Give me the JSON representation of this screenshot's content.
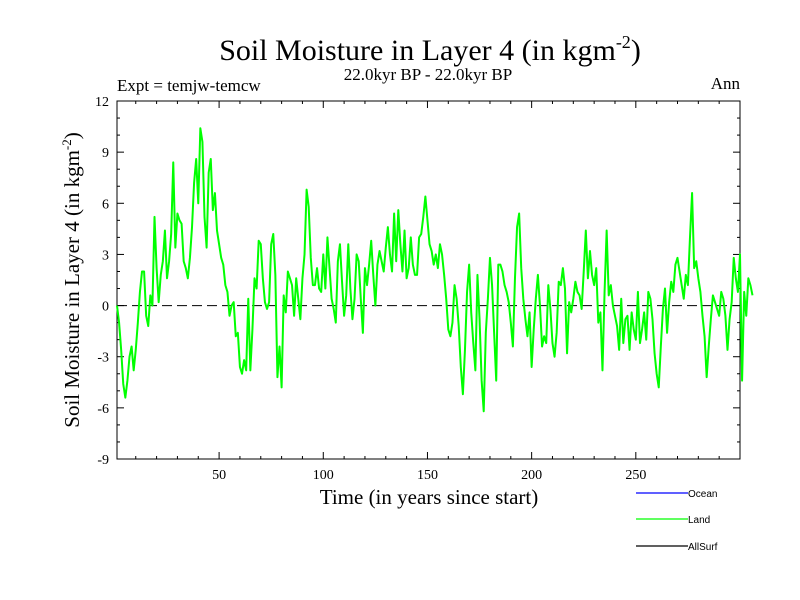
{
  "chart_data": {
    "type": "line",
    "title": "Soil Moisture in Layer 4 (in kgm",
    "title_superscript": "-2",
    "title_close": ")",
    "subtitle": "22.0kyr BP - 22.0kyr BP",
    "experiment": "Expt = temjw-temcw",
    "season": "Ann",
    "xlabel": "Time (in years since start)",
    "ylabel": "Soil Moisture in Layer 4 (in kgm",
    "ylabel_superscript": "-2",
    "ylabel_close": ")",
    "xlim": [
      1,
      300
    ],
    "ylim": [
      -9,
      12
    ],
    "xticks": [
      50,
      100,
      150,
      200,
      250
    ],
    "yticks": [
      -9,
      -6,
      -3,
      0,
      3,
      6,
      9,
      12
    ],
    "zero_line": "dashed",
    "legend": [
      "Ocean",
      "Land",
      "AllSurf"
    ],
    "series": [
      {
        "name": "Ocean",
        "color": "#0000ff",
        "values": []
      },
      {
        "name": "AllSurf",
        "color": "#000000",
        "values": []
      },
      {
        "name": "Land",
        "color": "#00ff00",
        "x_start": 1,
        "values": [
          0.0,
          -1.0,
          -2.6,
          -4.6,
          -5.4,
          -4.4,
          -3.0,
          -2.4,
          -3.8,
          -2.6,
          -1.0,
          0.8,
          2.0,
          2.0,
          -0.6,
          -1.2,
          0.6,
          0.0,
          5.2,
          2.2,
          0.2,
          1.8,
          2.6,
          4.4,
          1.6,
          2.6,
          4.2,
          8.4,
          3.4,
          5.4,
          5.0,
          4.8,
          2.6,
          2.2,
          1.6,
          2.8,
          4.6,
          7.2,
          8.6,
          6.0,
          10.4,
          9.6,
          5.2,
          3.4,
          7.8,
          8.6,
          5.6,
          6.6,
          4.4,
          3.6,
          2.8,
          2.4,
          1.2,
          0.8,
          -0.6,
          0.0,
          0.2,
          -1.8,
          -1.6,
          -3.6,
          -4.0,
          -3.2,
          -3.8,
          0.4,
          -3.8,
          -1.4,
          1.6,
          1.0,
          3.8,
          3.6,
          1.6,
          0.2,
          -0.2,
          0.2,
          3.6,
          4.2,
          1.8,
          -4.2,
          -2.4,
          -4.8,
          0.6,
          -0.4,
          2.0,
          1.6,
          1.2,
          -0.6,
          1.6,
          0.4,
          -0.8,
          1.6,
          3.0,
          6.8,
          5.8,
          2.8,
          1.2,
          1.2,
          2.2,
          1.0,
          0.8,
          3.0,
          1.0,
          4.0,
          2.2,
          0.4,
          -0.2,
          -1.0,
          2.6,
          3.6,
          1.4,
          -0.6,
          0.6,
          3.6,
          1.0,
          -0.8,
          0.4,
          3.0,
          2.6,
          0.4,
          -1.6,
          2.2,
          1.2,
          2.4,
          3.8,
          1.8,
          0.0,
          2.4,
          3.2,
          2.6,
          2.0,
          3.4,
          4.6,
          3.0,
          2.0,
          5.4,
          2.6,
          5.6,
          3.6,
          2.0,
          4.4,
          1.6,
          2.2,
          4.0,
          2.4,
          1.8,
          1.8,
          4.0,
          4.2,
          5.2,
          6.4,
          5.0,
          3.6,
          3.2,
          2.4,
          3.0,
          2.2,
          3.6,
          3.0,
          1.8,
          0.4,
          -1.4,
          -1.8,
          -1.0,
          1.2,
          0.4,
          -1.2,
          -3.6,
          -5.2,
          -2.6,
          0.8,
          2.4,
          -0.4,
          -2.2,
          -3.8,
          1.8,
          -0.8,
          -4.4,
          -6.2,
          -1.6,
          0.4,
          2.8,
          1.2,
          -1.6,
          -4.4,
          2.4,
          2.4,
          2.0,
          1.2,
          0.8,
          0.2,
          -1.0,
          -2.4,
          1.6,
          4.6,
          5.4,
          2.2,
          0.4,
          -0.8,
          -1.8,
          -0.4,
          -3.6,
          -1.4,
          0.4,
          1.8,
          0.0,
          -2.4,
          -1.8,
          -2.2,
          1.2,
          -0.2,
          -2.2,
          -3.0,
          -1.6,
          1.4,
          1.2,
          2.2,
          1.0,
          -2.8,
          0.2,
          -0.4,
          0.4,
          1.4,
          0.8,
          0.6,
          -0.2,
          2.0,
          4.4,
          1.6,
          3.2,
          1.8,
          1.2,
          2.2,
          -1.0,
          -0.4,
          -3.8,
          0.8,
          4.4,
          0.6,
          1.2,
          0.0,
          -0.6,
          -1.2,
          -2.6,
          0.4,
          -2.2,
          -0.8,
          -0.6,
          -2.6,
          -0.4,
          -1.4,
          -2.0,
          0.8,
          -2.2,
          -1.4,
          -0.4,
          -2.0,
          0.8,
          0.4,
          -0.8,
          -2.8,
          -4.0,
          -4.8,
          -2.4,
          -0.2,
          1.0,
          -1.6,
          0.2,
          1.4,
          0.8,
          2.4,
          2.8,
          2.0,
          1.2,
          0.4,
          1.8,
          1.2,
          4.0,
          6.6,
          2.2,
          2.6,
          1.6,
          0.8,
          -0.6,
          -1.8,
          -4.2,
          -2.4,
          -0.8,
          0.6,
          0.2,
          -0.2,
          -0.6,
          0.8,
          0.4,
          -0.6,
          -2.6,
          -0.8,
          0.2,
          2.8,
          1.6,
          0.8,
          3.0,
          -4.4,
          0.8,
          -0.6,
          1.6,
          1.2,
          0.6
        ]
      }
    ]
  }
}
